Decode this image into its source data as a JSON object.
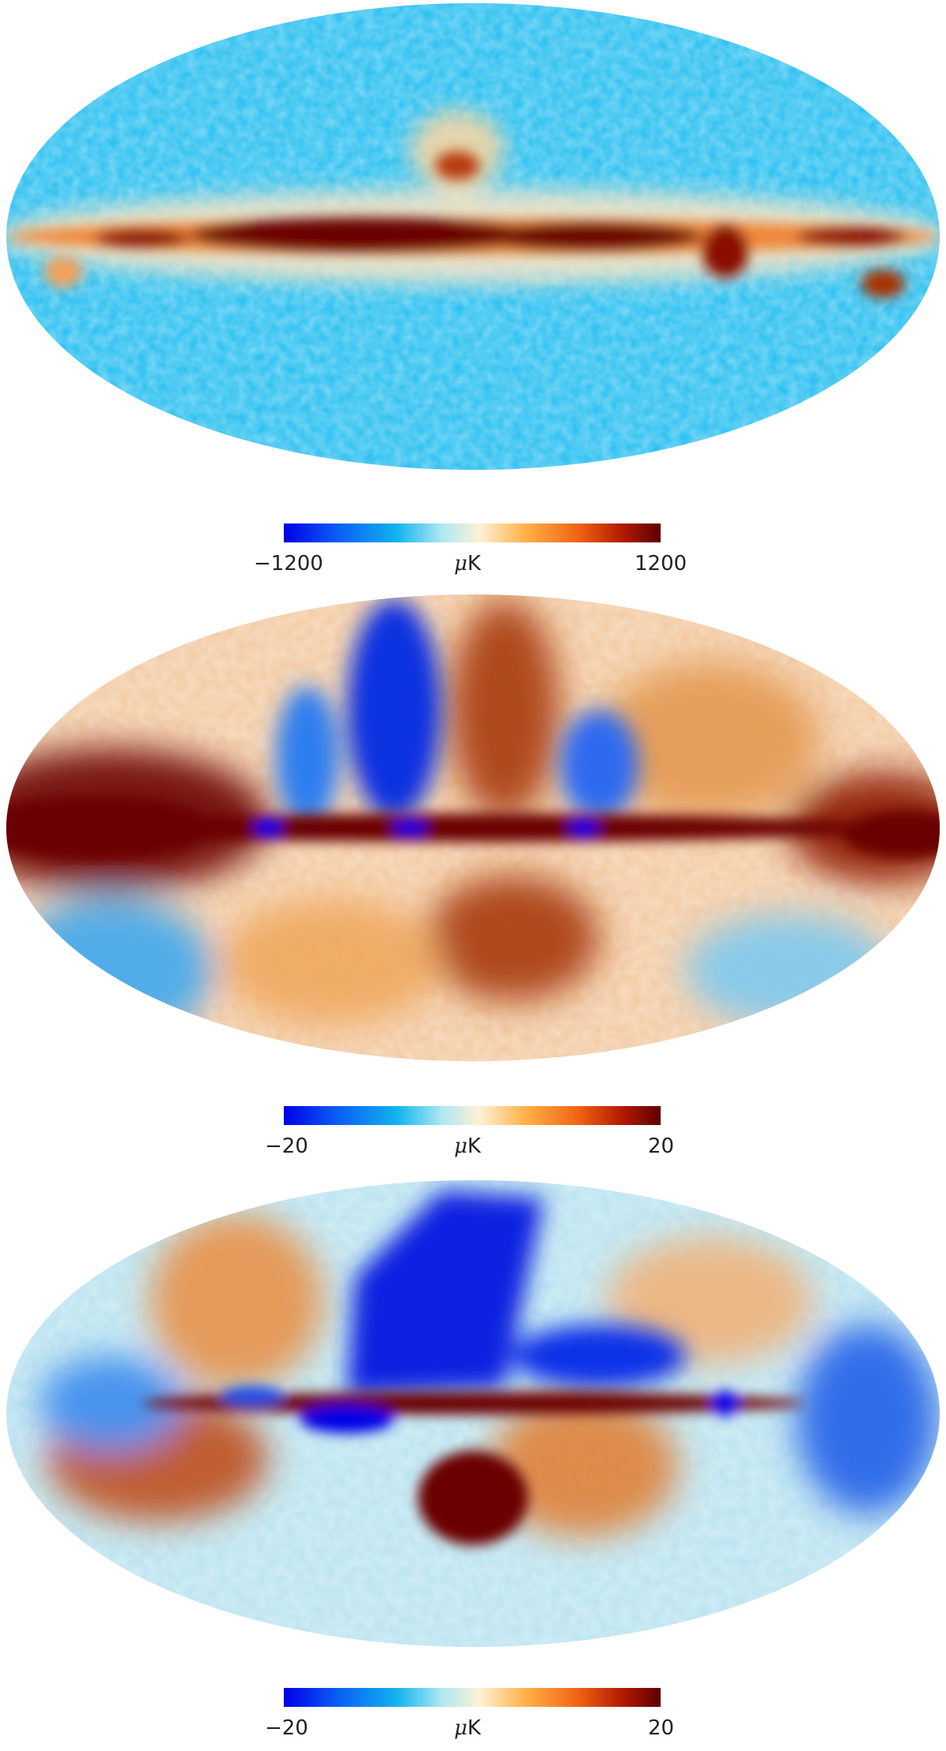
{
  "panels": [
    {
      "map_name": "temperature-map",
      "colorbar": {
        "min": "−1200",
        "unit_symbol": "μ",
        "unit_text": "K",
        "max": "1200"
      }
    },
    {
      "map_name": "polarization-q-map",
      "colorbar": {
        "min": "−20",
        "unit_symbol": "μ",
        "unit_text": "K",
        "max": "20"
      }
    },
    {
      "map_name": "polarization-u-map",
      "colorbar": {
        "min": "−20",
        "unit_symbol": "μ",
        "unit_text": "K",
        "max": "20"
      }
    }
  ],
  "colors": {
    "scale": [
      "#0000e6",
      "#0a5cf5",
      "#12b4ee",
      "#aee8f2",
      "#fff1d4",
      "#ffb24a",
      "#f06414",
      "#b01a00",
      "#5e0000"
    ],
    "map1_base": "#21bdf0",
    "map2_base": "#f3c9a0",
    "map3_base": "#b9e3f0",
    "plane": "#6a0000"
  }
}
